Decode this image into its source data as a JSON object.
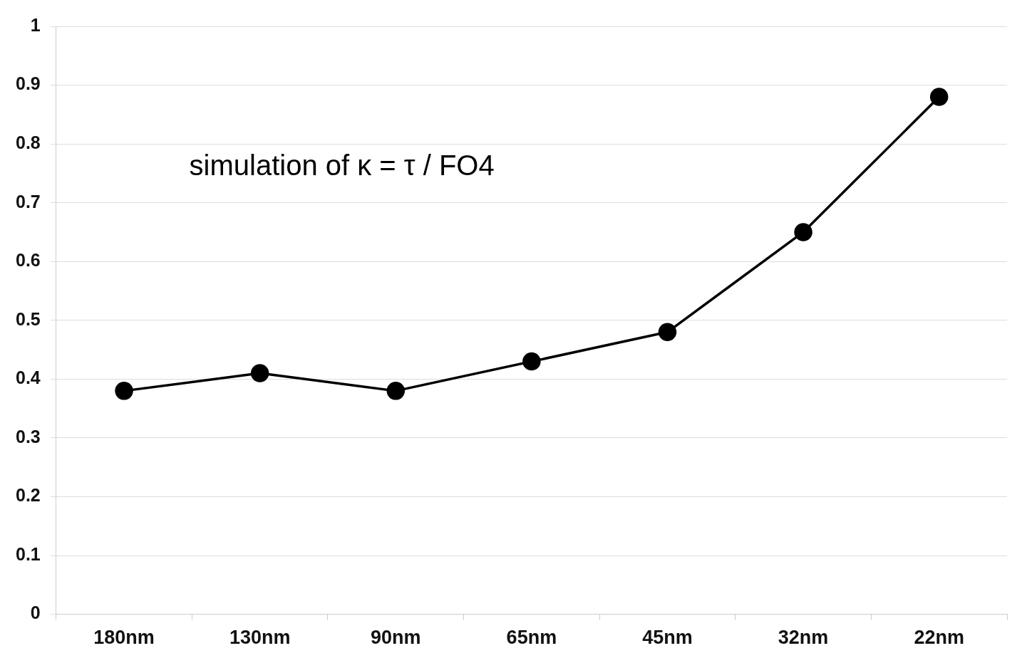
{
  "chart_data": {
    "type": "line",
    "categories": [
      "180nm",
      "130nm",
      "90nm",
      "65nm",
      "45nm",
      "32nm",
      "22nm"
    ],
    "series": [
      {
        "color": "#000000",
        "values": [
          0.38,
          0.41,
          0.38,
          0.43,
          0.48,
          0.65,
          0.88
        ]
      }
    ],
    "ylim": [
      0,
      1
    ],
    "yticks": [
      0,
      0.1,
      0.2,
      0.3,
      0.4,
      0.5,
      0.6,
      0.7,
      0.8,
      0.9,
      1
    ],
    "grid": "y",
    "legend": false,
    "marker": "circle",
    "line_style": "solid",
    "annotations": [
      "simulation of κ = τ / FO4"
    ]
  }
}
